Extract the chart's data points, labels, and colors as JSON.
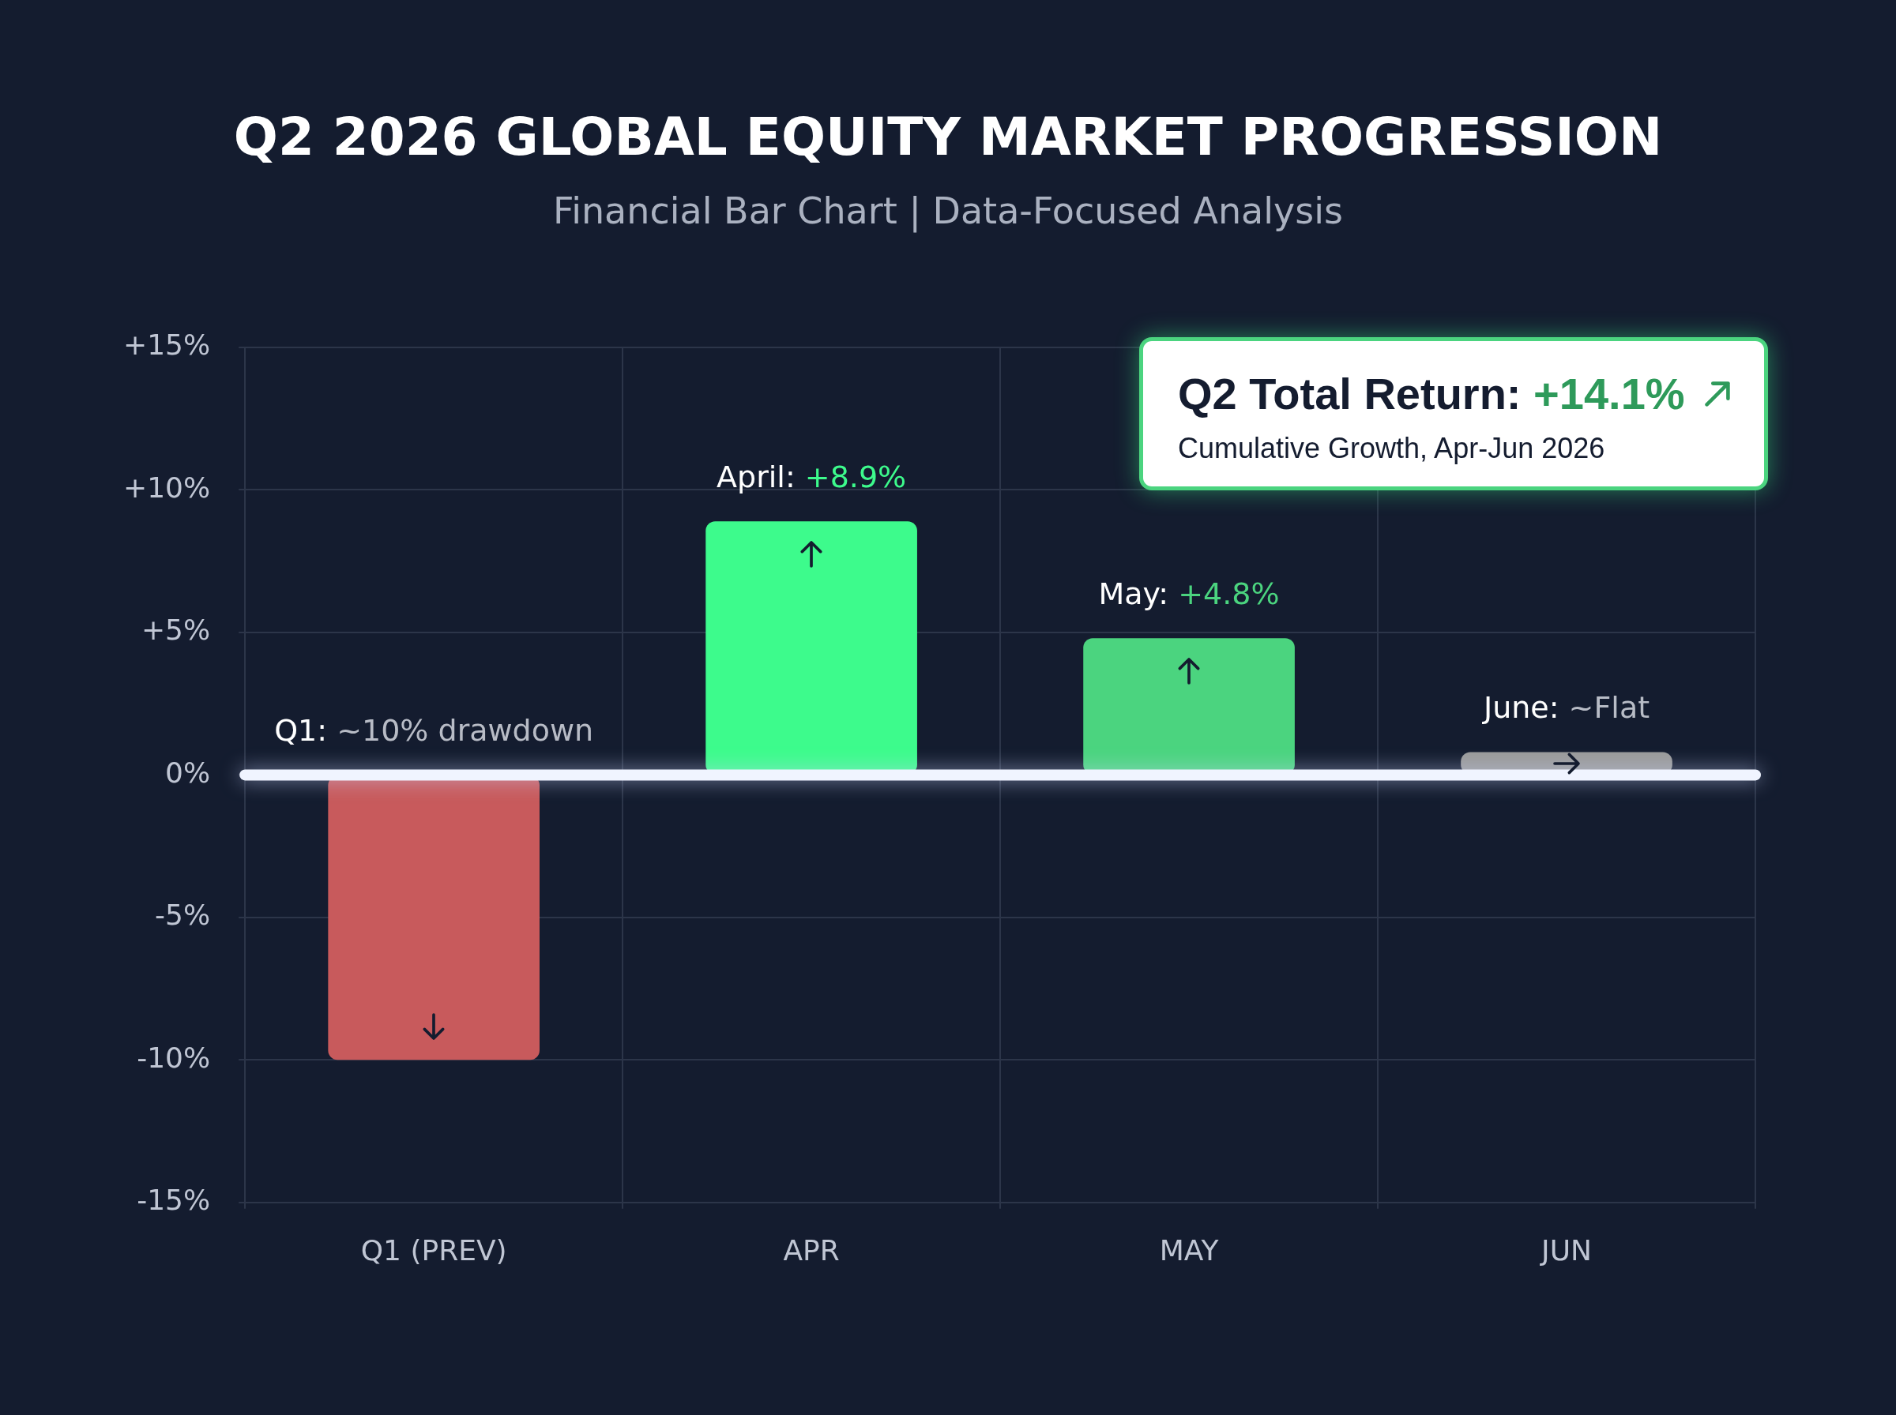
{
  "chart_data": {
    "type": "bar",
    "title": "Q2 2026 GLOBAL EQUITY MARKET PROGRESSION",
    "subtitle": "Financial Bar Chart | Data-Focused Analysis",
    "categories": [
      "Q1 (PREV)",
      "APR",
      "MAY",
      "JUN"
    ],
    "values": [
      -10,
      8.9,
      4.8,
      0.8
    ],
    "colors": [
      "#c85a5c",
      "#3dfb8c",
      "#4bd47f",
      "#9a9a9a"
    ],
    "ylim": [
      -15,
      15
    ],
    "yticks": [
      {
        "value": -15,
        "label": "-15%"
      },
      {
        "value": -10,
        "label": "-10%"
      },
      {
        "value": -5,
        "label": "-5%"
      },
      {
        "value": 0,
        "label": "0%"
      },
      {
        "value": 5,
        "label": "+5%"
      },
      {
        "value": 10,
        "label": "+10%"
      },
      {
        "value": 15,
        "label": "+15%"
      }
    ],
    "ref_lines": [
      {
        "axis": "y",
        "value": 0,
        "color": "#f0f4ff"
      }
    ],
    "annotations": [
      "Q2 Total Return: +14.1%",
      "Cumulative Growth, Apr-Jun 2026",
      {
        "text": "Q1: ~10% drawdown",
        "x": "Q1 (PREV)",
        "y": 0
      },
      {
        "text": "April: +8.9%",
        "x": "APR",
        "y": 8.9
      },
      {
        "text": "May: +4.8%",
        "x": "MAY",
        "y": 4.8
      },
      {
        "text": "June: ~Flat",
        "x": "JUN",
        "y": 0.8
      }
    ],
    "grid": true,
    "legend": false
  }
}
